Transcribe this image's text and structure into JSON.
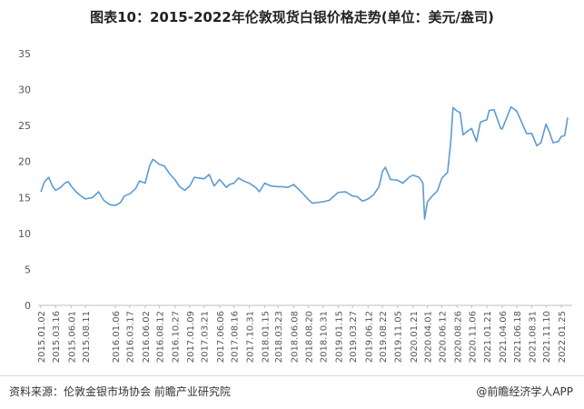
{
  "chart_data": {
    "type": "line",
    "title": "图表10：2015-2022年伦敦现货白银价格走势(单位：美元/盎司)",
    "ylim": [
      0,
      35
    ],
    "yticks": [
      0,
      5,
      10,
      15,
      20,
      25,
      30,
      35
    ],
    "grid": false,
    "legend": "none",
    "line_color": "#5b9bd5",
    "x_tick_labels": [
      "2015.01.02",
      "2015.03.16",
      "2015.06.01",
      "2015.08.11",
      "2016.01.06",
      "2016.03.17",
      "2016.06.02",
      "2016.08.12",
      "2016.10.27",
      "2017.01.09",
      "2017.03.21",
      "2017.06.06",
      "2017.08.16",
      "2017.10.31",
      "2018.01.15",
      "2018.03.23",
      "2018.06.08",
      "2018.08.20",
      "2018.10.31",
      "2019.01.15",
      "2019.03.27",
      "2019.06.12",
      "2019.08.22",
      "2019.11.05",
      "2020.01.21",
      "2020.04.01",
      "2020.06.12",
      "2020.08.26",
      "2020.11.06",
      "2021.01.21",
      "2021.04.06",
      "2021.06.18",
      "2021.08.31",
      "2021.11.10",
      "2022.01.25"
    ],
    "series": [
      {
        "x": [
          "2015.01.02",
          "2015.01.20",
          "2015.02.10",
          "2015.03.02",
          "2015.03.16",
          "2015.04.10",
          "2015.05.01",
          "2015.05.18",
          "2015.06.01",
          "2015.06.25",
          "2015.07.20",
          "2015.08.11",
          "2015.09.15",
          "2015.10.15",
          "2015.11.10",
          "2015.12.10",
          "2016.01.06",
          "2016.02.01",
          "2016.02.20",
          "2016.03.17",
          "2016.04.15",
          "2016.05.05",
          "2016.06.02",
          "2016.06.25",
          "2016.07.10",
          "2016.08.12",
          "2016.09.05",
          "2016.10.01",
          "2016.10.27",
          "2016.11.20",
          "2016.12.15",
          "2017.01.09",
          "2017.02.01",
          "2017.02.25",
          "2017.03.21",
          "2017.04.15",
          "2017.05.10",
          "2017.06.06",
          "2017.07.10",
          "2017.07.25",
          "2017.08.16",
          "2017.09.08",
          "2017.10.10",
          "2017.10.31",
          "2017.12.01",
          "2017.12.20",
          "2018.01.15",
          "2018.02.15",
          "2018.03.23",
          "2018.04.15",
          "2018.05.10",
          "2018.06.08",
          "2018.07.15",
          "2018.08.20",
          "2018.09.10",
          "2018.10.31",
          "2018.12.01",
          "2019.01.15",
          "2019.02.20",
          "2019.03.27",
          "2019.04.20",
          "2019.05.15",
          "2019.06.12",
          "2019.07.10",
          "2019.08.05",
          "2019.08.22",
          "2019.09.05",
          "2019.10.01",
          "2019.11.05",
          "2019.12.01",
          "2020.01.05",
          "2020.01.21",
          "2020.02.20",
          "2020.03.10",
          "2020.03.18",
          "2020.04.01",
          "2020.04.25",
          "2020.05.20",
          "2020.06.12",
          "2020.07.10",
          "2020.07.25",
          "2020.08.06",
          "2020.08.26",
          "2020.09.10",
          "2020.09.25",
          "2020.10.15",
          "2020.11.06",
          "2020.11.30",
          "2020.12.20",
          "2021.01.21",
          "2021.02.01",
          "2021.02.25",
          "2021.03.30",
          "2021.04.06",
          "2021.04.25",
          "2021.05.20",
          "2021.06.18",
          "2021.07.10",
          "2021.08.05",
          "2021.08.31",
          "2021.09.25",
          "2021.10.15",
          "2021.11.10",
          "2021.11.25",
          "2021.12.15",
          "2022.01.10",
          "2022.01.25",
          "2022.02.10",
          "2022.02.25"
        ],
        "values": [
          15.8,
          17.2,
          17.8,
          16.5,
          16.0,
          16.4,
          17.0,
          17.2,
          16.6,
          15.8,
          15.2,
          14.8,
          15.0,
          15.8,
          14.6,
          14.0,
          13.9,
          14.3,
          15.2,
          15.5,
          16.2,
          17.3,
          17.0,
          19.5,
          20.3,
          19.6,
          19.4,
          18.3,
          17.5,
          16.5,
          16.0,
          16.6,
          17.8,
          17.7,
          17.6,
          18.2,
          16.6,
          17.5,
          16.4,
          16.8,
          17.0,
          17.7,
          17.2,
          17.0,
          16.4,
          15.8,
          17.0,
          16.6,
          16.5,
          16.5,
          16.4,
          16.8,
          15.8,
          14.7,
          14.2,
          14.4,
          14.6,
          15.7,
          15.8,
          15.2,
          15.1,
          14.5,
          14.8,
          15.4,
          16.5,
          18.6,
          19.2,
          17.5,
          17.4,
          17.0,
          17.9,
          18.1,
          17.8,
          17.0,
          12.0,
          14.4,
          15.2,
          15.9,
          17.7,
          18.5,
          22.6,
          27.5,
          27.0,
          26.8,
          23.7,
          24.2,
          24.6,
          22.8,
          25.5,
          25.8,
          27.1,
          27.2,
          24.6,
          24.5,
          25.8,
          27.6,
          27.0,
          25.6,
          23.9,
          23.9,
          22.2,
          22.6,
          25.2,
          24.2,
          22.6,
          22.8,
          23.5,
          23.6,
          26.1
        ]
      }
    ]
  },
  "footer": {
    "source": "资料来源：伦敦金银市场协会 前瞻产业研究院",
    "credit": "@前瞻经济学人APP"
  }
}
